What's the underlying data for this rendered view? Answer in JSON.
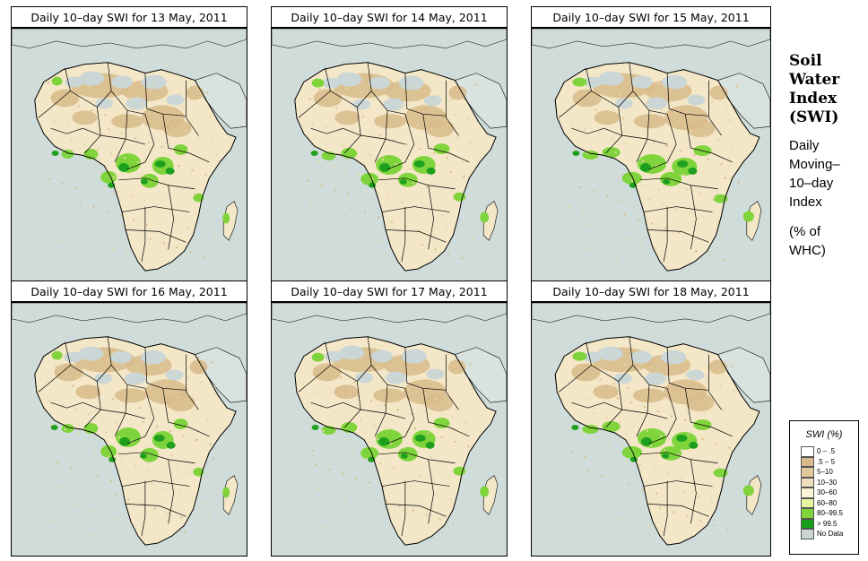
{
  "panels": [
    {
      "title": "Daily 10–day SWI for  13 May, 2011"
    },
    {
      "title": "Daily 10–day SWI for  14 May, 2011"
    },
    {
      "title": "Daily 10–day SWI for  15 May, 2011"
    },
    {
      "title": "Daily 10–day SWI for  16 May, 2011"
    },
    {
      "title": "Daily 10–day SWI for  17 May, 2011"
    },
    {
      "title": "Daily 10–day SWI for  18 May, 2011"
    }
  ],
  "side": {
    "heading": [
      "Soil",
      "Water",
      "Index",
      "(SWI)"
    ],
    "desc": [
      "Daily",
      "Moving–",
      "10–day",
      "Index",
      "",
      "(% of",
      " WHC)"
    ]
  },
  "legend": {
    "title": "SWI (%)",
    "items": [
      {
        "label": "0 – .5",
        "color": "#ffffff"
      },
      {
        "label": ".5 – 5",
        "color": "#d8b98a"
      },
      {
        "label": "5–10",
        "color": "#e2c79a"
      },
      {
        "label": "10–30",
        "color": "#f0dfbc"
      },
      {
        "label": "30–60",
        "color": "#fdf5d8"
      },
      {
        "label": "60–80",
        "color": "#e6f5a0"
      },
      {
        "label": "80–99.5",
        "color": "#7ed63a"
      },
      {
        "label": "> 99.5",
        "color": "#17a017"
      },
      {
        "label": "No Data",
        "color": "#c9d6d4"
      }
    ]
  },
  "colors": {
    "sea": "#cfdcd9",
    "land": "#f3e7c8",
    "desert": "#d9bd8c",
    "wet": "#7fd43c",
    "verywet": "#1ea01e",
    "nodata": "#cbd7d6"
  }
}
